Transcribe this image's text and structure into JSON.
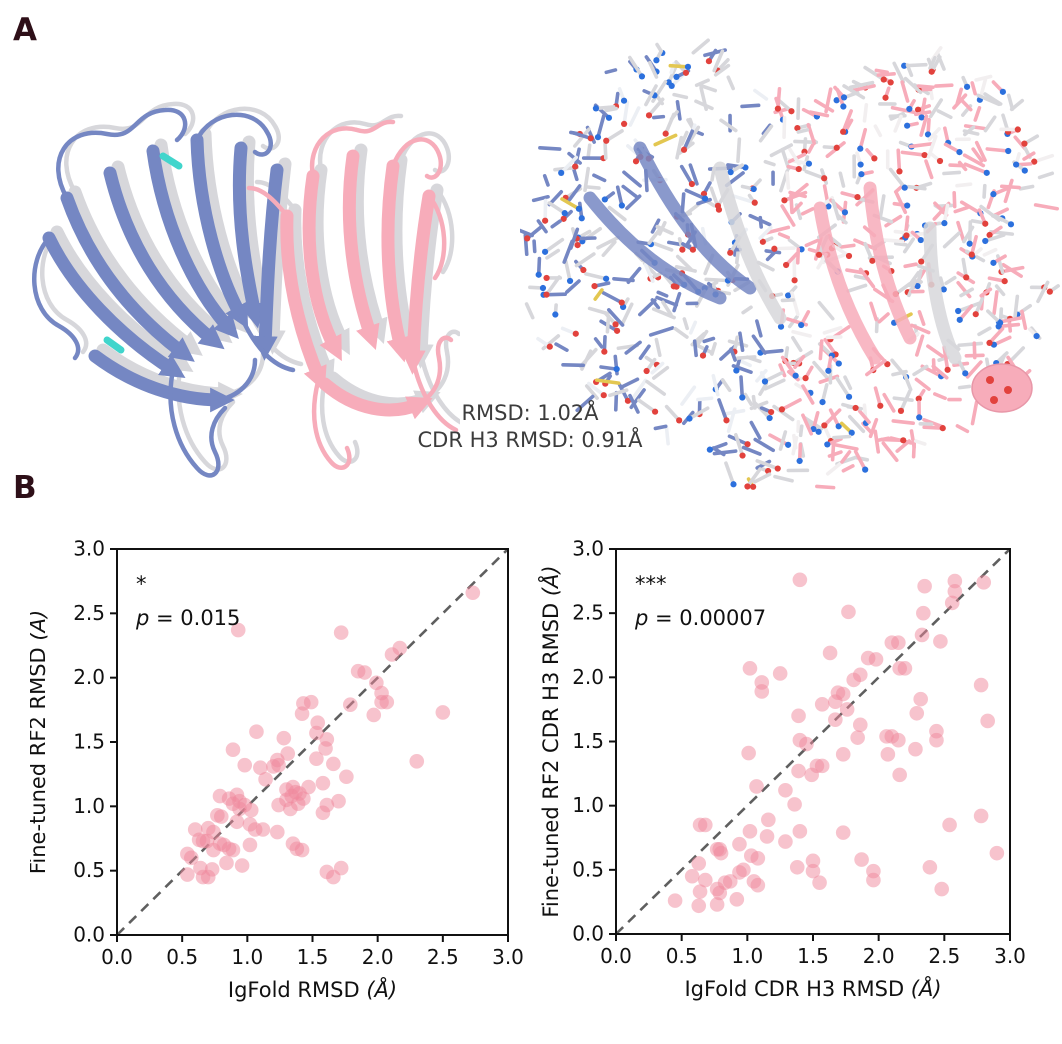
{
  "panel_a": {
    "label": "A",
    "annotation": {
      "line1": "RMSD: 1.02Å",
      "line2": "CDR H3 RMSD: 0.91Å"
    },
    "structure_colors": {
      "cartoon_blue": "#7587c3",
      "cartoon_pink": "#f7acba",
      "overlay_gray": "#d7d7db",
      "gray_edge": "#b9b9bf",
      "nitrogen_blue": "#2c70dd",
      "oxygen_red": "#e2423d",
      "sulfur_yellow": "#e3c751",
      "cyan_accent": "#41d5cc"
    }
  },
  "panel_b": {
    "label": "B"
  },
  "chart_data": [
    {
      "type": "scatter",
      "title": "",
      "xlabel": "IgFold RMSD (Å)",
      "ylabel": "Fine-tuned RF2 RMSD (Å)",
      "xlim": [
        0.0,
        3.0
      ],
      "ylim": [
        0.0,
        3.0
      ],
      "xticks": [
        "0.0",
        "0.5",
        "1.0",
        "1.5",
        "2.0",
        "2.5",
        "3.0"
      ],
      "yticks": [
        "0.0",
        "0.5",
        "1.0",
        "1.5",
        "2.0",
        "2.5",
        "3.0"
      ],
      "grid": false,
      "legend": "none",
      "significance": "*",
      "p_symbol": "p",
      "p_rest": " = 0.015",
      "identity_line": true,
      "marker_color": "#f0879b",
      "marker_alpha": 0.5,
      "line_color": "#5f5f5f",
      "points": [
        [
          0.93,
          2.37
        ],
        [
          1.72,
          2.35
        ],
        [
          2.73,
          2.66
        ],
        [
          2.17,
          2.23
        ],
        [
          2.11,
          2.18
        ],
        [
          1.85,
          2.05
        ],
        [
          1.9,
          2.04
        ],
        [
          1.99,
          1.96
        ],
        [
          2.03,
          1.88
        ],
        [
          2.03,
          1.81
        ],
        [
          2.07,
          1.81
        ],
        [
          1.79,
          1.79
        ],
        [
          1.43,
          1.8
        ],
        [
          1.49,
          1.81
        ],
        [
          1.42,
          1.72
        ],
        [
          1.97,
          1.71
        ],
        [
          2.5,
          1.73
        ],
        [
          1.54,
          1.65
        ],
        [
          1.53,
          1.57
        ],
        [
          1.07,
          1.58
        ],
        [
          1.61,
          1.52
        ],
        [
          1.28,
          1.53
        ],
        [
          1.6,
          1.45
        ],
        [
          0.89,
          1.44
        ],
        [
          1.31,
          1.41
        ],
        [
          1.53,
          1.37
        ],
        [
          1.23,
          1.36
        ],
        [
          1.24,
          1.32
        ],
        [
          1.66,
          1.33
        ],
        [
          2.3,
          1.35
        ],
        [
          0.98,
          1.32
        ],
        [
          1.1,
          1.3
        ],
        [
          1.2,
          1.31
        ],
        [
          1.76,
          1.23
        ],
        [
          1.14,
          1.21
        ],
        [
          1.58,
          1.18
        ],
        [
          1.47,
          1.15
        ],
        [
          1.35,
          1.15
        ],
        [
          1.3,
          1.13
        ],
        [
          1.37,
          1.11
        ],
        [
          1.4,
          1.1
        ],
        [
          1.34,
          1.08
        ],
        [
          1.43,
          1.06
        ],
        [
          1.3,
          1.05
        ],
        [
          1.39,
          1.02
        ],
        [
          1.24,
          1.01
        ],
        [
          1.33,
          0.98
        ],
        [
          1.7,
          1.04
        ],
        [
          1.61,
          1.01
        ],
        [
          0.92,
          1.09
        ],
        [
          0.86,
          1.06
        ],
        [
          0.94,
          1.04
        ],
        [
          0.89,
          1.02
        ],
        [
          0.98,
          1.01
        ],
        [
          0.94,
          0.98
        ],
        [
          0.79,
          1.08
        ],
        [
          1.03,
          0.97
        ],
        [
          1.58,
          0.95
        ],
        [
          0.77,
          0.93
        ],
        [
          0.8,
          0.92
        ],
        [
          0.92,
          0.88
        ],
        [
          1.02,
          0.86
        ],
        [
          1.06,
          0.82
        ],
        [
          1.12,
          0.82
        ],
        [
          1.23,
          0.8
        ],
        [
          0.7,
          0.83
        ],
        [
          0.74,
          0.8
        ],
        [
          0.6,
          0.82
        ],
        [
          0.63,
          0.74
        ],
        [
          0.66,
          0.73
        ],
        [
          0.69,
          0.73
        ],
        [
          0.79,
          0.71
        ],
        [
          0.82,
          0.7
        ],
        [
          0.86,
          0.67
        ],
        [
          0.89,
          0.66
        ],
        [
          0.74,
          0.66
        ],
        [
          1.35,
          0.71
        ],
        [
          1.38,
          0.67
        ],
        [
          1.42,
          0.66
        ],
        [
          1.02,
          0.7
        ],
        [
          0.54,
          0.63
        ],
        [
          0.57,
          0.6
        ],
        [
          0.84,
          0.56
        ],
        [
          0.96,
          0.54
        ],
        [
          0.64,
          0.52
        ],
        [
          0.73,
          0.51
        ],
        [
          0.54,
          0.47
        ],
        [
          0.66,
          0.45
        ],
        [
          0.7,
          0.45
        ],
        [
          1.61,
          0.49
        ],
        [
          1.72,
          0.52
        ],
        [
          1.66,
          0.45
        ]
      ]
    },
    {
      "type": "scatter",
      "title": "",
      "xlabel": "IgFold CDR H3 RMSD (Å)",
      "ylabel": "Fine-tuned RF2 CDR H3 RMSD (Å)",
      "xlim": [
        0.0,
        3.0
      ],
      "ylim": [
        0.0,
        3.0
      ],
      "xticks": [
        "0.0",
        "0.5",
        "1.0",
        "1.5",
        "2.0",
        "2.5",
        "3.0"
      ],
      "yticks": [
        "0.0",
        "0.5",
        "1.0",
        "1.5",
        "2.0",
        "2.5",
        "3.0"
      ],
      "grid": false,
      "legend": "none",
      "significance": "***",
      "p_symbol": "p",
      "p_rest": " = 0.00007",
      "identity_line": true,
      "marker_color": "#f0879b",
      "marker_alpha": 0.5,
      "line_color": "#5f5f5f",
      "points": [
        [
          1.4,
          2.76
        ],
        [
          2.35,
          2.71
        ],
        [
          2.58,
          2.75
        ],
        [
          2.58,
          2.67
        ],
        [
          2.8,
          2.74
        ],
        [
          2.56,
          2.58
        ],
        [
          1.77,
          2.51
        ],
        [
          2.34,
          2.5
        ],
        [
          2.33,
          2.33
        ],
        [
          2.1,
          2.27
        ],
        [
          2.15,
          2.27
        ],
        [
          2.47,
          2.28
        ],
        [
          1.63,
          2.19
        ],
        [
          1.92,
          2.15
        ],
        [
          1.98,
          2.14
        ],
        [
          1.02,
          2.07
        ],
        [
          1.25,
          2.03
        ],
        [
          2.16,
          2.07
        ],
        [
          2.2,
          2.07
        ],
        [
          1.81,
          1.98
        ],
        [
          1.86,
          2.02
        ],
        [
          1.11,
          1.96
        ],
        [
          1.11,
          1.89
        ],
        [
          2.78,
          1.94
        ],
        [
          1.69,
          1.88
        ],
        [
          1.73,
          1.87
        ],
        [
          2.32,
          1.83
        ],
        [
          1.57,
          1.79
        ],
        [
          1.67,
          1.81
        ],
        [
          1.76,
          1.75
        ],
        [
          2.29,
          1.72
        ],
        [
          1.39,
          1.7
        ],
        [
          1.67,
          1.67
        ],
        [
          1.86,
          1.63
        ],
        [
          2.83,
          1.66
        ],
        [
          1.84,
          1.53
        ],
        [
          2.06,
          1.54
        ],
        [
          2.1,
          1.54
        ],
        [
          2.15,
          1.51
        ],
        [
          2.44,
          1.58
        ],
        [
          1.4,
          1.51
        ],
        [
          1.45,
          1.48
        ],
        [
          2.44,
          1.51
        ],
        [
          1.01,
          1.41
        ],
        [
          1.73,
          1.4
        ],
        [
          2.07,
          1.4
        ],
        [
          2.28,
          1.44
        ],
        [
          1.53,
          1.31
        ],
        [
          1.57,
          1.31
        ],
        [
          1.39,
          1.27
        ],
        [
          1.49,
          1.24
        ],
        [
          2.16,
          1.24
        ],
        [
          1.07,
          1.15
        ],
        [
          1.29,
          1.12
        ],
        [
          1.36,
          1.01
        ],
        [
          1.16,
          0.89
        ],
        [
          2.78,
          0.92
        ],
        [
          2.54,
          0.85
        ],
        [
          0.64,
          0.85
        ],
        [
          0.68,
          0.85
        ],
        [
          1.02,
          0.8
        ],
        [
          1.15,
          0.76
        ],
        [
          1.4,
          0.8
        ],
        [
          1.73,
          0.79
        ],
        [
          1.29,
          0.72
        ],
        [
          0.94,
          0.7
        ],
        [
          0.77,
          0.66
        ],
        [
          0.79,
          0.66
        ],
        [
          0.8,
          0.63
        ],
        [
          1.03,
          0.61
        ],
        [
          1.08,
          0.59
        ],
        [
          2.9,
          0.63
        ],
        [
          1.5,
          0.57
        ],
        [
          1.87,
          0.58
        ],
        [
          0.63,
          0.55
        ],
        [
          1.38,
          0.52
        ],
        [
          0.94,
          0.48
        ],
        [
          0.97,
          0.5
        ],
        [
          1.5,
          0.49
        ],
        [
          1.96,
          0.49
        ],
        [
          2.39,
          0.52
        ],
        [
          0.58,
          0.45
        ],
        [
          0.68,
          0.42
        ],
        [
          0.83,
          0.4
        ],
        [
          0.87,
          0.41
        ],
        [
          1.05,
          0.41
        ],
        [
          1.08,
          0.38
        ],
        [
          1.96,
          0.42
        ],
        [
          1.55,
          0.4
        ],
        [
          0.77,
          0.35
        ],
        [
          0.79,
          0.32
        ],
        [
          0.64,
          0.33
        ],
        [
          2.48,
          0.35
        ],
        [
          0.92,
          0.27
        ],
        [
          0.45,
          0.26
        ],
        [
          0.63,
          0.22
        ],
        [
          0.77,
          0.23
        ]
      ]
    }
  ]
}
